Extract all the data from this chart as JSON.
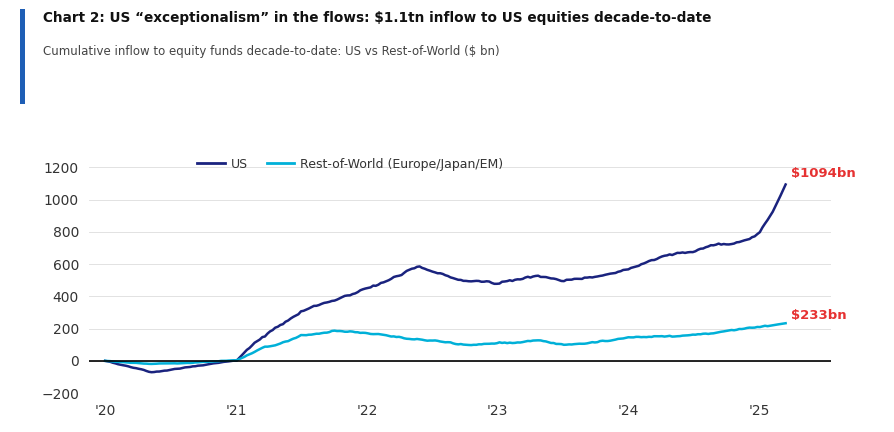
{
  "title": "Chart 2: US “exceptionalism” in the flows: $1.1tn inflow to US equities decade-to-date",
  "subtitle": "Cumulative inflow to equity funds decade-to-date: US vs Rest-of-World ($ bn)",
  "us_label": "US",
  "row_label": "Rest-of-World (Europe/Japan/EM)",
  "us_color": "#1a237e",
  "row_color": "#00b0d8",
  "annotation_us": "$1094bn",
  "annotation_row": "$233bn",
  "annotation_color": "#e63232",
  "ylim": [
    -200,
    1300
  ],
  "yticks": [
    -200,
    0,
    200,
    400,
    600,
    800,
    1000,
    1200
  ],
  "xtick_labels": [
    "'20",
    "'21",
    "'22",
    "'23",
    "'24",
    "'25"
  ],
  "xtick_positions": [
    2020,
    2021,
    2022,
    2023,
    2024,
    2025
  ],
  "xlim_left": 2019.88,
  "xlim_right": 2025.55,
  "background_color": "#ffffff",
  "left_bar_color": "#1e5eb5",
  "zero_line_color": "#000000",
  "grid_color": "#dddddd"
}
